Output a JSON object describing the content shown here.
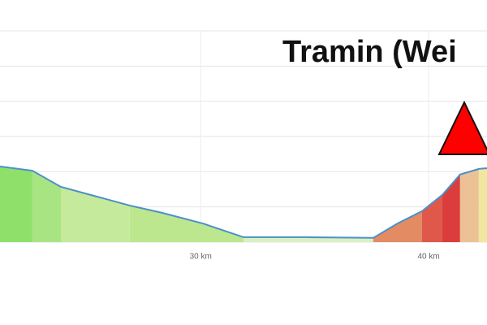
{
  "chart_data": {
    "type": "area",
    "title": "Tramin (Wei",
    "x": [
      21.2,
      22.62,
      23.87,
      25.47,
      26.89,
      28.32,
      30.1,
      31.88,
      34.72,
      37.57,
      38.64,
      39.71,
      40.6,
      41.38,
      42.2,
      42.56
    ],
    "values": [
      415,
      403,
      357,
      329,
      304,
      283,
      253,
      214,
      214,
      212,
      253,
      288,
      334,
      392,
      408,
      410
    ],
    "color": "#4a90c8",
    "segments": [
      {
        "start": 21.2,
        "end": 22.62,
        "color": "#8ee06a"
      },
      {
        "start": 22.62,
        "end": 23.87,
        "color": "#a9e482"
      },
      {
        "start": 23.87,
        "end": 26.89,
        "color": "#c6ea9c"
      },
      {
        "start": 26.89,
        "end": 31.88,
        "color": "#bde78e"
      },
      {
        "start": 31.88,
        "end": 37.57,
        "color": "#d9f0c2"
      },
      {
        "start": 37.57,
        "end": 39.71,
        "color": "#e38b63"
      },
      {
        "start": 39.71,
        "end": 40.6,
        "color": "#e0584a"
      },
      {
        "start": 40.6,
        "end": 41.38,
        "color": "#db3d3d"
      },
      {
        "start": 41.38,
        "end": 42.2,
        "color": "#ecc195"
      },
      {
        "start": 42.2,
        "end": 42.56,
        "color": "#f0e6a0"
      }
    ],
    "xlim": [
      21.2,
      42.56
    ],
    "xticks": [
      {
        "value": 30,
        "label": "30 km"
      },
      {
        "value": 40,
        "label": "40 km"
      }
    ],
    "ylim": [
      200,
      800
    ],
    "yticks": [
      200,
      300,
      400,
      500,
      600,
      700,
      800
    ],
    "grid": true
  }
}
